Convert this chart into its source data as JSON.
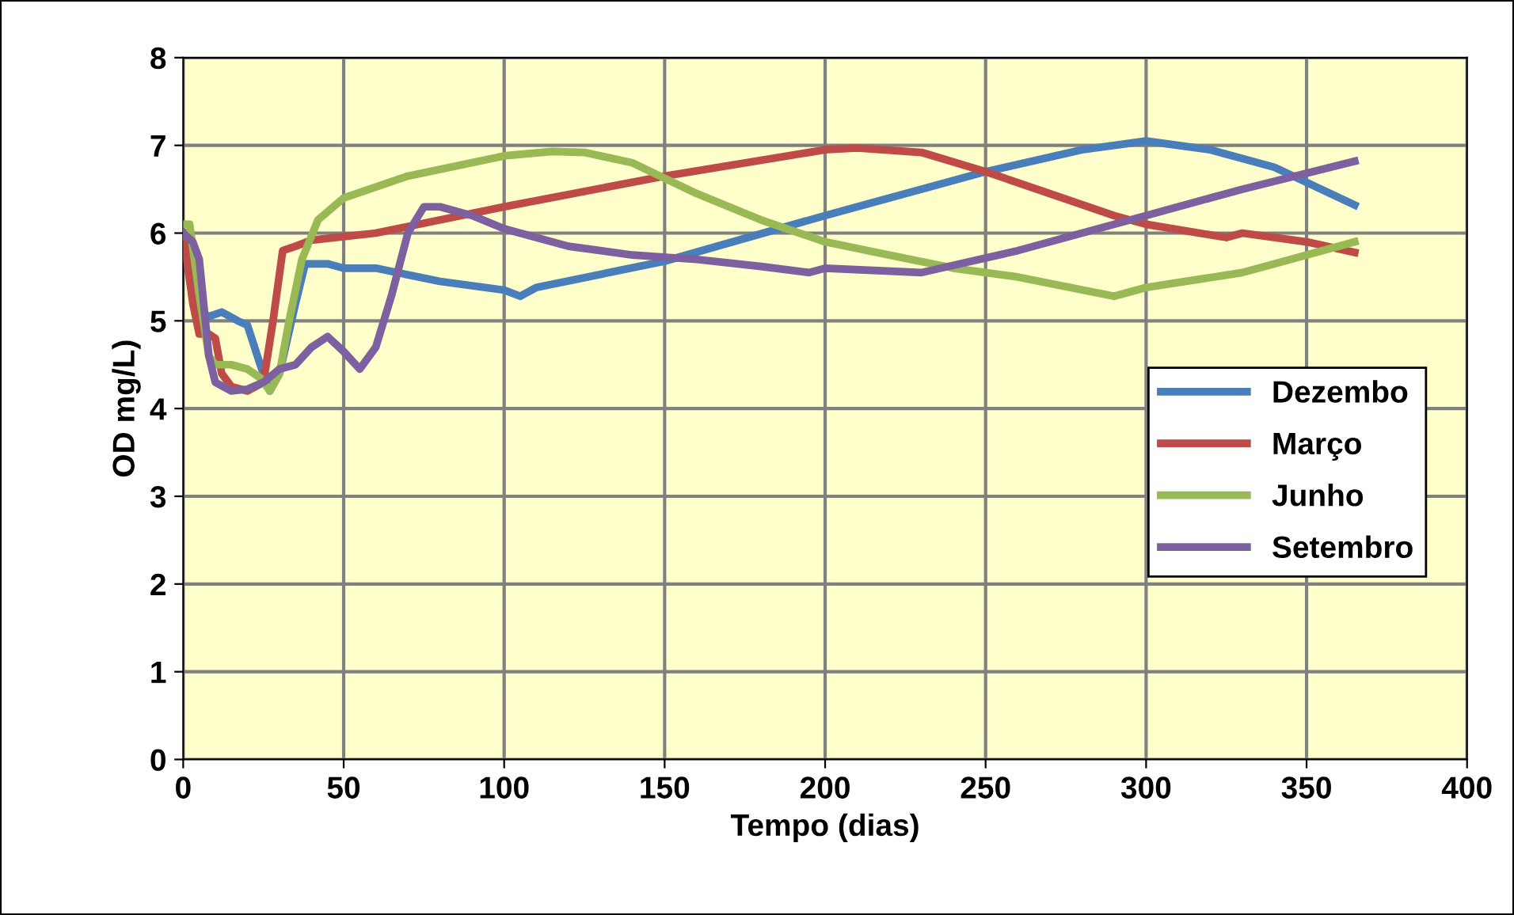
{
  "chart_data": {
    "type": "line",
    "xlabel": "Tempo (dias)",
    "ylabel": "OD mg/L)",
    "xlim": [
      0,
      400
    ],
    "ylim": [
      0,
      8
    ],
    "xticks": [
      0,
      50,
      100,
      150,
      200,
      250,
      300,
      350,
      400
    ],
    "yticks": [
      0,
      1,
      2,
      3,
      4,
      5,
      6,
      7,
      8
    ],
    "grid": true,
    "legend": "right",
    "marker": "none",
    "line_style": "solid",
    "series": [
      {
        "name": "Dezembo",
        "color": "#4a7ebb",
        "x": [
          0,
          3,
          5,
          8,
          12,
          17,
          20,
          24,
          27,
          30,
          35,
          38,
          45,
          50,
          60,
          80,
          100,
          105,
          110,
          150,
          200,
          250,
          280,
          300,
          320,
          340,
          365
        ],
        "values": [
          6.0,
          5.8,
          5.1,
          5.05,
          5.1,
          5.0,
          4.95,
          4.5,
          4.2,
          4.4,
          5.2,
          5.65,
          5.65,
          5.6,
          5.6,
          5.45,
          5.35,
          5.28,
          5.38,
          5.68,
          6.2,
          6.7,
          6.95,
          7.05,
          6.95,
          6.75,
          6.32
        ]
      },
      {
        "name": "Março",
        "color": "#be4b48",
        "x": [
          0,
          3,
          5,
          8,
          10,
          12,
          15,
          20,
          25,
          28,
          31,
          35,
          40,
          60,
          100,
          150,
          200,
          210,
          230,
          250,
          270,
          290,
          300,
          320,
          325,
          330,
          350,
          365
        ],
        "values": [
          6.0,
          5.2,
          4.85,
          4.85,
          4.8,
          4.4,
          4.25,
          4.2,
          4.3,
          5.0,
          5.8,
          5.85,
          5.92,
          6.0,
          6.3,
          6.65,
          6.95,
          6.97,
          6.92,
          6.7,
          6.45,
          6.2,
          6.1,
          5.98,
          5.95,
          6.0,
          5.9,
          5.78
        ]
      },
      {
        "name": "Junho",
        "color": "#98b954",
        "x": [
          0,
          2,
          5,
          8,
          10,
          15,
          20,
          24,
          27,
          30,
          33,
          37,
          42,
          50,
          70,
          100,
          115,
          125,
          140,
          160,
          180,
          200,
          220,
          240,
          260,
          290,
          300,
          330,
          365
        ],
        "values": [
          6.1,
          6.1,
          5.3,
          4.6,
          4.5,
          4.5,
          4.45,
          4.35,
          4.2,
          4.4,
          5.0,
          5.7,
          6.15,
          6.4,
          6.65,
          6.88,
          6.93,
          6.92,
          6.8,
          6.45,
          6.15,
          5.9,
          5.75,
          5.6,
          5.5,
          5.28,
          5.38,
          5.55,
          5.9
        ]
      },
      {
        "name": "Setembro",
        "color": "#7d60a0",
        "x": [
          0,
          3,
          5,
          8,
          10,
          15,
          20,
          25,
          30,
          35,
          40,
          45,
          50,
          55,
          60,
          65,
          70,
          75,
          80,
          90,
          100,
          120,
          140,
          160,
          180,
          195,
          200,
          230,
          260,
          300,
          330,
          365
        ],
        "values": [
          6.0,
          5.9,
          5.7,
          4.6,
          4.3,
          4.2,
          4.22,
          4.3,
          4.45,
          4.5,
          4.7,
          4.82,
          4.65,
          4.45,
          4.7,
          5.3,
          6.0,
          6.3,
          6.3,
          6.2,
          6.05,
          5.85,
          5.75,
          5.7,
          5.62,
          5.55,
          5.6,
          5.55,
          5.8,
          6.2,
          6.5,
          6.82
        ]
      }
    ]
  }
}
